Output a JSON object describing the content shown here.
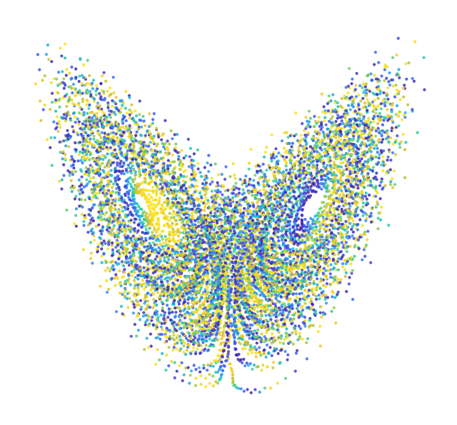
{
  "image": {
    "subject": "lorenz-attractor",
    "background": "#ffffff",
    "colormap": [
      "#3e26a8",
      "#4352ee",
      "#2f7ffa",
      "#2aa8e8",
      "#10c4c4",
      "#3fd08c",
      "#96cc4a",
      "#d4bb2c",
      "#f5cf28",
      "#f9e41d"
    ]
  },
  "lorenz": {
    "sigma": 10,
    "rho": 28,
    "beta": 2.6666667
  }
}
